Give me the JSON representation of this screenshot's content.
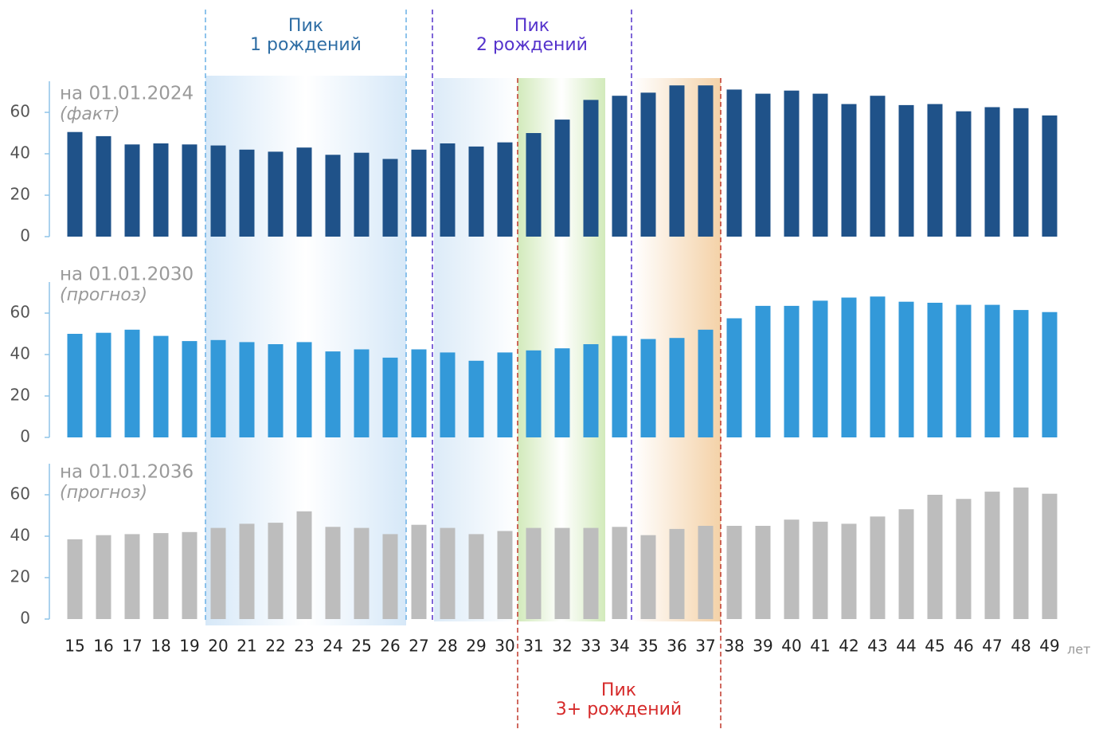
{
  "chart_data": {
    "type": "bar",
    "categories": [
      "15",
      "16",
      "17",
      "18",
      "19",
      "20",
      "21",
      "22",
      "23",
      "24",
      "25",
      "26",
      "27",
      "28",
      "29",
      "30",
      "31",
      "32",
      "33",
      "34",
      "35",
      "36",
      "37",
      "38",
      "39",
      "40",
      "41",
      "42",
      "43",
      "44",
      "45",
      "46",
      "47",
      "48",
      "49"
    ],
    "x_label": "лет",
    "series": [
      {
        "name": "на 01.01.2024",
        "subtitle": "(факт)",
        "color": "#1f5289",
        "ylim": [
          0,
          75
        ],
        "yticks": [
          0,
          20,
          40,
          60
        ],
        "values": [
          50.5,
          48.5,
          44.5,
          45,
          44.5,
          44,
          42,
          41,
          43,
          39.5,
          40.5,
          37.5,
          42,
          45,
          43.5,
          45.5,
          50,
          56.5,
          66,
          68,
          69.5,
          73,
          73,
          71,
          69,
          70.5,
          69,
          64,
          68,
          63.5,
          64,
          60.5,
          62.5,
          62,
          58.5
        ]
      },
      {
        "name": "на 01.01.2030",
        "subtitle": "(прогноз)",
        "color": "#3399d9",
        "ylim": [
          0,
          75
        ],
        "yticks": [
          0,
          20,
          40,
          60
        ],
        "values": [
          50,
          50.5,
          52,
          49,
          46.5,
          47,
          46,
          45,
          46,
          41.5,
          42.5,
          38.5,
          42.5,
          41,
          37,
          41,
          42,
          43,
          45,
          49,
          47.5,
          48,
          52,
          57.5,
          63.5,
          63.5,
          66,
          67.5,
          68,
          65.5,
          65,
          64,
          64,
          61.5,
          60.5
        ]
      },
      {
        "name": "на 01.01.2036",
        "subtitle": "(прогноз)",
        "color": "#bdbdbd",
        "ylim": [
          0,
          75
        ],
        "yticks": [
          0,
          20,
          40,
          60
        ],
        "values": [
          38.5,
          40.5,
          41,
          41.5,
          42,
          44,
          46,
          46.5,
          52,
          44.5,
          44,
          41,
          45.5,
          44,
          41,
          42.5,
          44,
          44,
          44,
          44.5,
          40.5,
          43.5,
          45,
          45,
          45,
          48,
          47,
          46,
          49.5,
          53,
          60,
          58,
          61.5,
          63.5,
          60.5
        ]
      }
    ],
    "annotations": [
      {
        "lines": [
          "Пик",
          "1 рождений"
        ],
        "color": "#2e6da4"
      },
      {
        "lines": [
          "Пик",
          "2 рождений"
        ],
        "color": "#5533cc"
      },
      {
        "lines": [
          "Пик",
          "3+ рождений"
        ],
        "color": "#d62a2a"
      }
    ]
  }
}
